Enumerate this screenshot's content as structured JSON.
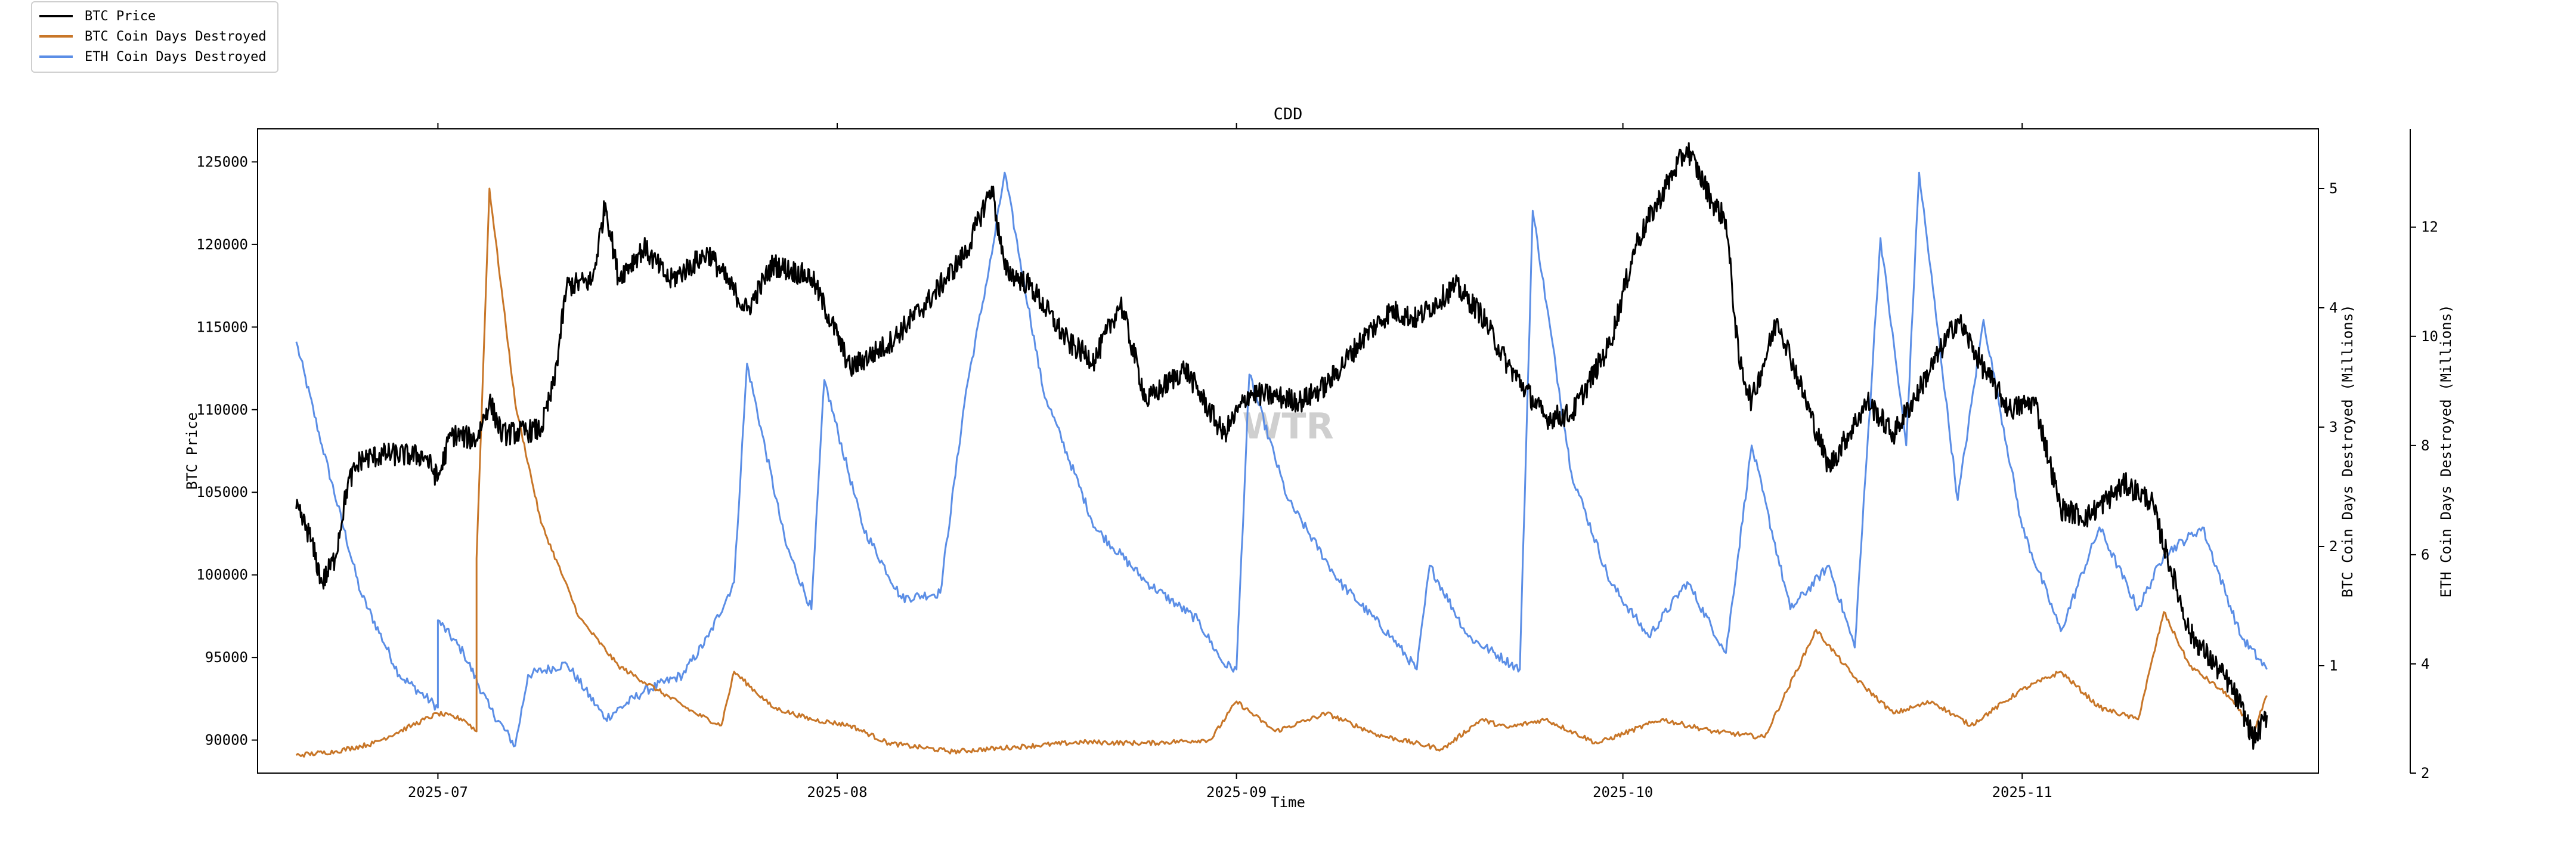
{
  "chart_data": {
    "type": "line",
    "title": "CDD",
    "xlabel": "Time",
    "watermark": "WTR",
    "x_range": [
      "2025-06-17",
      "2025-11-24"
    ],
    "x_ticks": [
      "2025-07",
      "2025-08",
      "2025-09",
      "2025-10",
      "2025-11"
    ],
    "legend_position": "top-left",
    "grid": false,
    "axes": {
      "left": {
        "label": "BTC Price",
        "ylim": [
          88000,
          127000
        ],
        "ticks": [
          90000,
          95000,
          100000,
          105000,
          110000,
          115000,
          120000,
          125000
        ]
      },
      "right": {
        "label": "BTC Coin Days Destroyed (Millions)",
        "ylim": [
          0.1,
          5.5
        ],
        "ticks": [
          1,
          2,
          3,
          4,
          5
        ]
      },
      "right2": {
        "label": "ETH Coin Days Destroyed (Millions)",
        "ylim": [
          2.0,
          13.8
        ],
        "ticks": [
          2,
          4,
          6,
          8,
          10,
          12
        ]
      }
    },
    "series": [
      {
        "name": "BTC Price",
        "axis": "left",
        "color": "#000000",
        "width": 3,
        "points": [
          [
            "2025-06-20",
            104000
          ],
          [
            "2025-06-21",
            102500
          ],
          [
            "2025-06-22",
            99500
          ],
          [
            "2025-06-23",
            101000
          ],
          [
            "2025-06-24",
            105500
          ],
          [
            "2025-06-25",
            107000
          ],
          [
            "2025-06-27",
            107300
          ],
          [
            "2025-06-30",
            107200
          ],
          [
            "2025-07-01",
            105800
          ],
          [
            "2025-07-02",
            108500
          ],
          [
            "2025-07-04",
            108200
          ],
          [
            "2025-07-05",
            110500
          ],
          [
            "2025-07-06",
            108500
          ],
          [
            "2025-07-09",
            108800
          ],
          [
            "2025-07-10",
            111500
          ],
          [
            "2025-07-11",
            117500
          ],
          [
            "2025-07-13",
            117800
          ],
          [
            "2025-07-14",
            122500
          ],
          [
            "2025-07-15",
            118000
          ],
          [
            "2025-07-17",
            119800
          ],
          [
            "2025-07-19",
            117800
          ],
          [
            "2025-07-22",
            119500
          ],
          [
            "2025-07-25",
            116000
          ],
          [
            "2025-07-27",
            118800
          ],
          [
            "2025-07-30",
            118000
          ],
          [
            "2025-08-01",
            114500
          ],
          [
            "2025-08-02",
            112500
          ],
          [
            "2025-08-05",
            114000
          ],
          [
            "2025-08-08",
            116500
          ],
          [
            "2025-08-11",
            119500
          ],
          [
            "2025-08-13",
            123500
          ],
          [
            "2025-08-14",
            118500
          ],
          [
            "2025-08-16",
            117500
          ],
          [
            "2025-08-19",
            114000
          ],
          [
            "2025-08-21",
            113000
          ],
          [
            "2025-08-23",
            116500
          ],
          [
            "2025-08-25",
            110500
          ],
          [
            "2025-08-28",
            112500
          ],
          [
            "2025-08-31",
            108500
          ],
          [
            "2025-09-02",
            111000
          ],
          [
            "2025-09-04",
            110800
          ],
          [
            "2025-09-06",
            110500
          ],
          [
            "2025-09-08",
            111500
          ],
          [
            "2025-09-11",
            114500
          ],
          [
            "2025-09-13",
            116000
          ],
          [
            "2025-09-15",
            115500
          ],
          [
            "2025-09-18",
            117500
          ],
          [
            "2025-09-20",
            115800
          ],
          [
            "2025-09-22",
            112800
          ],
          [
            "2025-09-25",
            109500
          ],
          [
            "2025-09-27",
            109700
          ],
          [
            "2025-09-30",
            114000
          ],
          [
            "2025-10-02",
            120000
          ],
          [
            "2025-10-05",
            124500
          ],
          [
            "2025-10-06",
            125800
          ],
          [
            "2025-10-08",
            122500
          ],
          [
            "2025-10-09",
            121500
          ],
          [
            "2025-10-10",
            113000
          ],
          [
            "2025-10-11",
            110500
          ],
          [
            "2025-10-13",
            115500
          ],
          [
            "2025-10-15",
            111000
          ],
          [
            "2025-10-17",
            106500
          ],
          [
            "2025-10-20",
            110500
          ],
          [
            "2025-10-22",
            108500
          ],
          [
            "2025-10-24",
            111200
          ],
          [
            "2025-10-27",
            115500
          ],
          [
            "2025-10-29",
            112500
          ],
          [
            "2025-10-31",
            110000
          ],
          [
            "2025-11-02",
            110500
          ],
          [
            "2025-11-04",
            104000
          ],
          [
            "2025-11-06",
            103500
          ],
          [
            "2025-11-09",
            105500
          ],
          [
            "2025-11-11",
            104500
          ],
          [
            "2025-11-14",
            96500
          ],
          [
            "2025-11-17",
            93500
          ],
          [
            "2025-11-18",
            92000
          ],
          [
            "2025-11-19",
            90000
          ],
          [
            "2025-11-20",
            91500
          ]
        ]
      },
      {
        "name": "BTC Coin Days Destroyed",
        "axis": "right",
        "color": "#c87628",
        "width": 3,
        "points": [
          [
            "2025-06-20",
            0.25
          ],
          [
            "2025-06-23",
            0.28
          ],
          [
            "2025-06-26",
            0.35
          ],
          [
            "2025-06-29",
            0.5
          ],
          [
            "2025-07-01",
            0.6
          ],
          [
            "2025-07-03",
            0.55
          ],
          [
            "2025-07-04",
            0.45
          ],
          [
            "2025-07-04",
            1.9
          ],
          [
            "2025-07-05",
            5.0
          ],
          [
            "2025-07-07",
            3.2
          ],
          [
            "2025-07-09",
            2.2
          ],
          [
            "2025-07-12",
            1.4
          ],
          [
            "2025-07-15",
            1.0
          ],
          [
            "2025-07-18",
            0.8
          ],
          [
            "2025-07-21",
            0.6
          ],
          [
            "2025-07-23",
            0.5
          ],
          [
            "2025-07-24",
            0.95
          ],
          [
            "2025-07-27",
            0.65
          ],
          [
            "2025-07-30",
            0.55
          ],
          [
            "2025-08-02",
            0.5
          ],
          [
            "2025-08-05",
            0.35
          ],
          [
            "2025-08-10",
            0.28
          ],
          [
            "2025-08-15",
            0.32
          ],
          [
            "2025-08-20",
            0.36
          ],
          [
            "2025-08-25",
            0.35
          ],
          [
            "2025-08-30",
            0.38
          ],
          [
            "2025-09-01",
            0.7
          ],
          [
            "2025-09-04",
            0.45
          ],
          [
            "2025-09-08",
            0.6
          ],
          [
            "2025-09-12",
            0.42
          ],
          [
            "2025-09-17",
            0.3
          ],
          [
            "2025-09-20",
            0.55
          ],
          [
            "2025-09-22",
            0.48
          ],
          [
            "2025-09-25",
            0.55
          ],
          [
            "2025-09-29",
            0.35
          ],
          [
            "2025-10-04",
            0.55
          ],
          [
            "2025-10-08",
            0.45
          ],
          [
            "2025-10-12",
            0.4
          ],
          [
            "2025-10-16",
            1.3
          ],
          [
            "2025-10-19",
            0.9
          ],
          [
            "2025-10-22",
            0.6
          ],
          [
            "2025-10-25",
            0.7
          ],
          [
            "2025-10-28",
            0.5
          ],
          [
            "2025-11-01",
            0.8
          ],
          [
            "2025-11-04",
            0.95
          ],
          [
            "2025-11-07",
            0.65
          ],
          [
            "2025-11-10",
            0.55
          ],
          [
            "2025-11-12",
            1.45
          ],
          [
            "2025-11-14",
            1.0
          ],
          [
            "2025-11-17",
            0.75
          ],
          [
            "2025-11-19",
            0.45
          ],
          [
            "2025-11-20",
            0.75
          ]
        ]
      },
      {
        "name": "ETH Coin Days Destroyed",
        "axis": "right2",
        "color": "#5b8ee6",
        "width": 3,
        "points": [
          [
            "2025-06-20",
            9.9
          ],
          [
            "2025-06-22",
            8.0
          ],
          [
            "2025-06-25",
            5.3
          ],
          [
            "2025-06-28",
            3.8
          ],
          [
            "2025-07-01",
            3.2
          ],
          [
            "2025-07-01",
            4.8
          ],
          [
            "2025-07-03",
            4.2
          ],
          [
            "2025-07-05",
            3.2
          ],
          [
            "2025-07-07",
            2.5
          ],
          [
            "2025-07-08",
            3.8
          ],
          [
            "2025-07-11",
            4.0
          ],
          [
            "2025-07-14",
            3.0
          ],
          [
            "2025-07-17",
            3.5
          ],
          [
            "2025-07-20",
            3.8
          ],
          [
            "2025-07-22",
            4.5
          ],
          [
            "2025-07-24",
            5.5
          ],
          [
            "2025-07-25",
            9.5
          ],
          [
            "2025-07-28",
            6.2
          ],
          [
            "2025-07-30",
            5.0
          ],
          [
            "2025-07-31",
            9.2
          ],
          [
            "2025-08-03",
            6.5
          ],
          [
            "2025-08-06",
            5.2
          ],
          [
            "2025-08-09",
            5.3
          ],
          [
            "2025-08-11",
            9.0
          ],
          [
            "2025-08-13",
            11.5
          ],
          [
            "2025-08-14",
            13.0
          ],
          [
            "2025-08-17",
            9.0
          ],
          [
            "2025-08-21",
            6.5
          ],
          [
            "2025-08-25",
            5.5
          ],
          [
            "2025-08-29",
            4.8
          ],
          [
            "2025-08-31",
            4.0
          ],
          [
            "2025-09-01",
            3.9
          ],
          [
            "2025-09-02",
            9.3
          ],
          [
            "2025-09-05",
            7.0
          ],
          [
            "2025-09-09",
            5.5
          ],
          [
            "2025-09-13",
            4.5
          ],
          [
            "2025-09-15",
            3.9
          ],
          [
            "2025-09-16",
            5.8
          ],
          [
            "2025-09-19",
            4.5
          ],
          [
            "2025-09-23",
            3.9
          ],
          [
            "2025-09-24",
            12.3
          ],
          [
            "2025-09-27",
            7.5
          ],
          [
            "2025-09-30",
            5.5
          ],
          [
            "2025-10-03",
            4.5
          ],
          [
            "2025-10-06",
            5.5
          ],
          [
            "2025-10-09",
            4.2
          ],
          [
            "2025-10-11",
            8.0
          ],
          [
            "2025-10-14",
            5.0
          ],
          [
            "2025-10-17",
            5.8
          ],
          [
            "2025-10-19",
            4.3
          ],
          [
            "2025-10-21",
            11.8
          ],
          [
            "2025-10-23",
            8.0
          ],
          [
            "2025-10-24",
            13.0
          ],
          [
            "2025-10-27",
            7.0
          ],
          [
            "2025-10-29",
            10.3
          ],
          [
            "2025-11-01",
            6.5
          ],
          [
            "2025-11-04",
            4.6
          ],
          [
            "2025-11-07",
            6.5
          ],
          [
            "2025-11-10",
            5.0
          ],
          [
            "2025-11-12",
            6.0
          ],
          [
            "2025-11-15",
            6.5
          ],
          [
            "2025-11-18",
            4.5
          ],
          [
            "2025-11-20",
            3.9
          ]
        ]
      }
    ]
  }
}
